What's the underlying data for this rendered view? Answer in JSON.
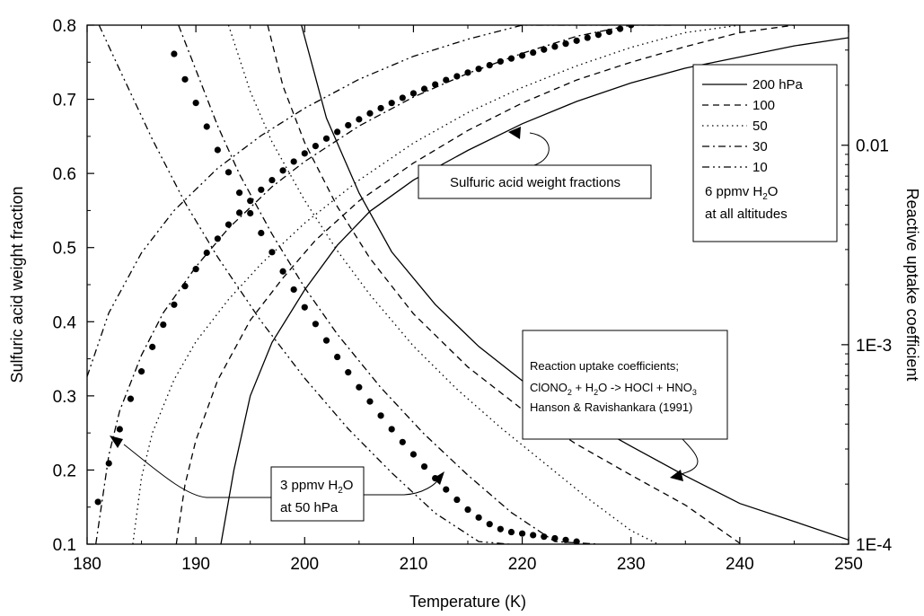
{
  "chart_data": {
    "type": "line",
    "xlabel": "Temperature (K)",
    "ylabel_left": "Sulfuric acid weight fraction",
    "ylabel_right": "Reactive uptake coefficient",
    "xlim": [
      180,
      250
    ],
    "ylim_left": [
      0.1,
      0.8
    ],
    "ylim_right": [
      0.0001,
      0.04
    ],
    "right_axis_scale": "log",
    "x_ticks": [
      180,
      190,
      200,
      210,
      220,
      230,
      240,
      250
    ],
    "x_tick_labels": [
      "180",
      "190",
      "200",
      "210",
      "220",
      "230",
      "240",
      "250"
    ],
    "y_ticks_left": [
      0.1,
      0.2,
      0.3,
      0.4,
      0.5,
      0.6,
      0.7,
      0.8
    ],
    "y_tick_labels_left": [
      "0.1",
      "0.2",
      "0.3",
      "0.4",
      "0.5",
      "0.6",
      "0.7",
      "0.8"
    ],
    "y_ticks_right": [
      0.0001,
      0.001,
      0.01
    ],
    "y_tick_labels_right": [
      "1E-4",
      "1E-3",
      "0.01"
    ],
    "grid": false,
    "legend": {
      "position": "top-right",
      "entries": [
        {
          "label": "200 hPa",
          "dash": "solid"
        },
        {
          "label": "100",
          "dash": "dashed"
        },
        {
          "label": "50",
          "dash": "dotted"
        },
        {
          "label": "30",
          "dash": "dashdot"
        },
        {
          "label": "10",
          "dash": "dashdotdot"
        }
      ],
      "note_lines": [
        "6 ppmv H₂O",
        "at all altitudes"
      ]
    },
    "series": [
      {
        "group": "weight_fraction",
        "pressure": "200 hPa",
        "dash": "solid",
        "axis": "left",
        "x": [
          192.3,
          193.5,
          195,
          197,
          200,
          203,
          206,
          210,
          215,
          220,
          225,
          230,
          235,
          240,
          245,
          250
        ],
        "y": [
          0.1,
          0.2,
          0.3,
          0.372,
          0.443,
          0.503,
          0.549,
          0.591,
          0.631,
          0.667,
          0.697,
          0.722,
          0.742,
          0.757,
          0.772,
          0.783
        ]
      },
      {
        "group": "weight_fraction",
        "pressure": "100",
        "dash": "dashed",
        "axis": "left",
        "x": [
          188.2,
          189,
          190,
          192,
          195,
          198,
          201,
          205,
          210,
          215,
          220,
          225,
          230,
          235,
          240,
          245
        ],
        "y": [
          0.1,
          0.18,
          0.24,
          0.321,
          0.402,
          0.459,
          0.51,
          0.563,
          0.614,
          0.658,
          0.695,
          0.726,
          0.75,
          0.771,
          0.79,
          0.8
        ]
      },
      {
        "group": "weight_fraction",
        "pressure": "50",
        "dash": "dotted",
        "axis": "left",
        "x": [
          184.2,
          185,
          186,
          188,
          190,
          193,
          196,
          200,
          205,
          210,
          215,
          220,
          225,
          230,
          235,
          240
        ],
        "y": [
          0.1,
          0.19,
          0.25,
          0.322,
          0.373,
          0.43,
          0.478,
          0.533,
          0.591,
          0.641,
          0.682,
          0.716,
          0.745,
          0.77,
          0.79,
          0.8
        ]
      },
      {
        "group": "weight_fraction",
        "pressure": "30",
        "dash": "dashdot",
        "axis": "left",
        "x": [
          180.8,
          182,
          183,
          185,
          187,
          190,
          193,
          197,
          200,
          205,
          210,
          215,
          220,
          225,
          230,
          234
        ],
        "y": [
          0.1,
          0.22,
          0.28,
          0.355,
          0.412,
          0.474,
          0.526,
          0.582,
          0.616,
          0.664,
          0.703,
          0.735,
          0.762,
          0.785,
          0.8,
          0.8
        ]
      },
      {
        "group": "weight_fraction",
        "pressure": "10",
        "dash": "dashdotdot",
        "axis": "left",
        "x": [
          180,
          182,
          185,
          188,
          192,
          196,
          200,
          205,
          210,
          215,
          220,
          225,
          228
        ],
        "y": [
          0.326,
          0.412,
          0.493,
          0.55,
          0.607,
          0.651,
          0.688,
          0.727,
          0.758,
          0.781,
          0.8,
          0.8,
          0.8
        ]
      },
      {
        "group": "weight_fraction_3ppmv",
        "pressure": "50",
        "dash": "dots",
        "axis": "left",
        "x": [
          181,
          182,
          183,
          184,
          185,
          186,
          187,
          188,
          189,
          190,
          191,
          192,
          193,
          194,
          195,
          196,
          197,
          198,
          199,
          200,
          201,
          202,
          203,
          204,
          205,
          206,
          207,
          208,
          209,
          210,
          211,
          212,
          213,
          214,
          215,
          216,
          217,
          218,
          219,
          220,
          221,
          222,
          223,
          224,
          225,
          226,
          227,
          228,
          229,
          230
        ],
        "y": [
          0.157,
          0.209,
          0.255,
          0.296,
          0.333,
          0.366,
          0.396,
          0.423,
          0.448,
          0.471,
          0.493,
          0.512,
          0.531,
          0.547,
          0.563,
          0.578,
          0.591,
          0.604,
          0.616,
          0.627,
          0.637,
          0.647,
          0.656,
          0.665,
          0.673,
          0.681,
          0.688,
          0.695,
          0.702,
          0.708,
          0.714,
          0.72,
          0.726,
          0.731,
          0.736,
          0.741,
          0.746,
          0.751,
          0.755,
          0.759,
          0.763,
          0.767,
          0.771,
          0.775,
          0.779,
          0.783,
          0.787,
          0.791,
          0.795,
          0.8
        ]
      },
      {
        "group": "uptake_coefficient",
        "pressure": "200 hPa",
        "dash": "solid",
        "axis": "right",
        "x": [
          199.7,
          202,
          205,
          208,
          212,
          216,
          220,
          225,
          230,
          235,
          240,
          245,
          250
        ],
        "y": [
          0.04,
          0.0137,
          0.00576,
          0.00292,
          0.00159,
          0.00098,
          0.00066,
          0.00044,
          0.00031,
          0.00022,
          0.00016,
          0.00013,
          0.000105
        ]
      },
      {
        "group": "uptake_coefficient",
        "pressure": "100",
        "dash": "dashed",
        "axis": "right",
        "x": [
          196.6,
          198,
          200,
          203,
          206,
          210,
          215,
          220,
          225,
          230,
          235,
          240
        ],
        "y": [
          0.04,
          0.0198,
          0.0103,
          0.00493,
          0.00271,
          0.00143,
          0.000773,
          0.000474,
          0.000317,
          0.000222,
          0.000157,
          0.000101
        ]
      },
      {
        "group": "uptake_coefficient",
        "pressure": "50",
        "dash": "dotted",
        "axis": "right",
        "x": [
          193,
          195,
          197,
          200,
          203,
          206,
          210,
          214,
          218,
          222,
          226,
          230,
          232.5
        ],
        "y": [
          0.04,
          0.0186,
          0.0104,
          0.00529,
          0.00296,
          0.00178,
          0.000984,
          0.000598,
          0.000385,
          0.000256,
          0.00017,
          0.000117,
          0.0001
        ]
      },
      {
        "group": "uptake_coefficient",
        "pressure": "30",
        "dash": "dashdot",
        "axis": "right",
        "x": [
          188.4,
          190,
          192,
          194,
          197,
          200,
          203,
          207,
          211,
          215,
          219,
          223,
          227
        ],
        "y": [
          0.04,
          0.0239,
          0.0125,
          0.00717,
          0.00359,
          0.00193,
          0.00113,
          0.000609,
          0.000356,
          0.000222,
          0.000144,
          0.000103,
          0.0001
        ]
      },
      {
        "group": "uptake_coefficient",
        "pressure": "10",
        "dash": "dashdotdot",
        "axis": "right",
        "x": [
          181.1,
          183,
          186,
          189,
          192,
          196,
          200,
          204,
          208,
          212,
          216,
          218.8
        ],
        "y": [
          0.04,
          0.0239,
          0.0107,
          0.00516,
          0.00275,
          0.00131,
          0.000679,
          0.000379,
          0.000228,
          0.000143,
          0.000103,
          0.0001
        ]
      },
      {
        "group": "uptake_coefficient_3ppmv",
        "pressure": "50",
        "dash": "dots",
        "axis": "right",
        "x": [
          188,
          189,
          190,
          191,
          192,
          193,
          194,
          195,
          196,
          197,
          198,
          199,
          200,
          201,
          202,
          203,
          204,
          205,
          206,
          207,
          208,
          209,
          210,
          211,
          212,
          213,
          214,
          215,
          216,
          217,
          218,
          219,
          220,
          221,
          222,
          223,
          224,
          225
        ],
        "y": [
          0.0287,
          0.0214,
          0.0163,
          0.0124,
          0.00947,
          0.00732,
          0.00578,
          0.00456,
          0.00363,
          0.00291,
          0.00233,
          0.00189,
          0.00154,
          0.00127,
          0.00105,
          0.000868,
          0.000727,
          0.000612,
          0.000519,
          0.000441,
          0.000377,
          0.000325,
          0.000282,
          0.000245,
          0.000214,
          0.000188,
          0.000167,
          0.000149,
          0.000136,
          0.000126,
          0.000119,
          0.000115,
          0.000113,
          0.000111,
          0.000109,
          0.000107,
          0.000105,
          0.000103
        ]
      }
    ],
    "annotations": {
      "weight_fractions_label": "Sulfuric acid weight fractions",
      "uptake_box_line1": "Reaction uptake coefficients;",
      "uptake_box_line2a": "ClONO",
      "uptake_box_line2b": "2",
      "uptake_box_line2c": " + H",
      "uptake_box_line2d": "2",
      "uptake_box_line2e": "O -> HOCl + HNO",
      "uptake_box_line2f": "3",
      "uptake_box_line3": "Hanson & Ravishankara (1991)",
      "ppmv_box_line1a": "3 ppmv H",
      "ppmv_box_line1b": "2",
      "ppmv_box_line1c": "O",
      "ppmv_box_line2": "at 50 hPa",
      "legend_note_line1a": "6 ppmv H",
      "legend_note_line1b": "2",
      "legend_note_line1c": "O",
      "legend_note_line2": "at all altitudes"
    }
  }
}
